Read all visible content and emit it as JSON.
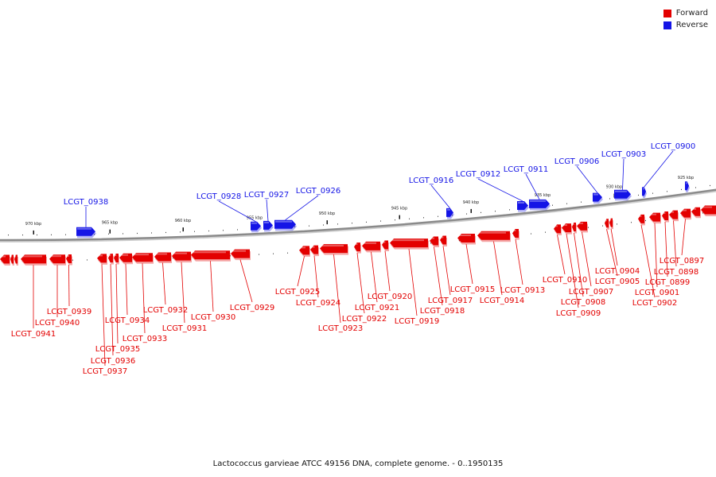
{
  "legend": {
    "forward_label": "Forward",
    "reverse_label": "Reverse",
    "forward_color": "#e30000",
    "reverse_color": "#1414e6"
  },
  "caption": "Lactococcus garvieae ATCC 49156 DNA, complete genome. - 0..1950135",
  "ticks": [
    {
      "label": "970 kbp"
    },
    {
      "label": "965 kbp"
    },
    {
      "label": "960 kbp"
    },
    {
      "label": "955 kbp"
    },
    {
      "label": "950 kbp"
    },
    {
      "label": "945 kbp"
    },
    {
      "label": "940 kbp"
    },
    {
      "label": "935 kbp"
    },
    {
      "label": "930 kbp"
    },
    {
      "label": "925 kbp"
    }
  ],
  "reverse_genes": [
    {
      "id": "LCGT_0938"
    },
    {
      "id": "LCGT_0928"
    },
    {
      "id": "LCGT_0927"
    },
    {
      "id": "LCGT_0926"
    },
    {
      "id": "LCGT_0916"
    },
    {
      "id": "LCGT_0912"
    },
    {
      "id": "LCGT_0911"
    },
    {
      "id": "LCGT_0906"
    },
    {
      "id": "LCGT_0903"
    },
    {
      "id": "LCGT_0900"
    }
  ],
  "forward_genes": [
    {
      "id": "LCGT_0941"
    },
    {
      "id": "LCGT_0940"
    },
    {
      "id": "LCGT_0939"
    },
    {
      "id": "LCGT_0937"
    },
    {
      "id": "LCGT_0936"
    },
    {
      "id": "LCGT_0935"
    },
    {
      "id": "LCGT_0934"
    },
    {
      "id": "LCGT_0933"
    },
    {
      "id": "LCGT_0932"
    },
    {
      "id": "LCGT_0931"
    },
    {
      "id": "LCGT_0930"
    },
    {
      "id": "LCGT_0929"
    },
    {
      "id": "LCGT_0925"
    },
    {
      "id": "LCGT_0924"
    },
    {
      "id": "LCGT_0923"
    },
    {
      "id": "LCGT_0922"
    },
    {
      "id": "LCGT_0921"
    },
    {
      "id": "LCGT_0920"
    },
    {
      "id": "LCGT_0919"
    },
    {
      "id": "LCGT_0918"
    },
    {
      "id": "LCGT_0917"
    },
    {
      "id": "LCGT_0915"
    },
    {
      "id": "LCGT_0914"
    },
    {
      "id": "LCGT_0913"
    },
    {
      "id": "LCGT_0910"
    },
    {
      "id": "LCGT_0909"
    },
    {
      "id": "LCGT_0908"
    },
    {
      "id": "LCGT_0907"
    },
    {
      "id": "LCGT_0905"
    },
    {
      "id": "LCGT_0904"
    },
    {
      "id": "LCGT_0902"
    },
    {
      "id": "LCGT_0901"
    },
    {
      "id": "LCGT_0899"
    },
    {
      "id": "LCGT_0898"
    },
    {
      "id": "LCGT_0897"
    }
  ]
}
